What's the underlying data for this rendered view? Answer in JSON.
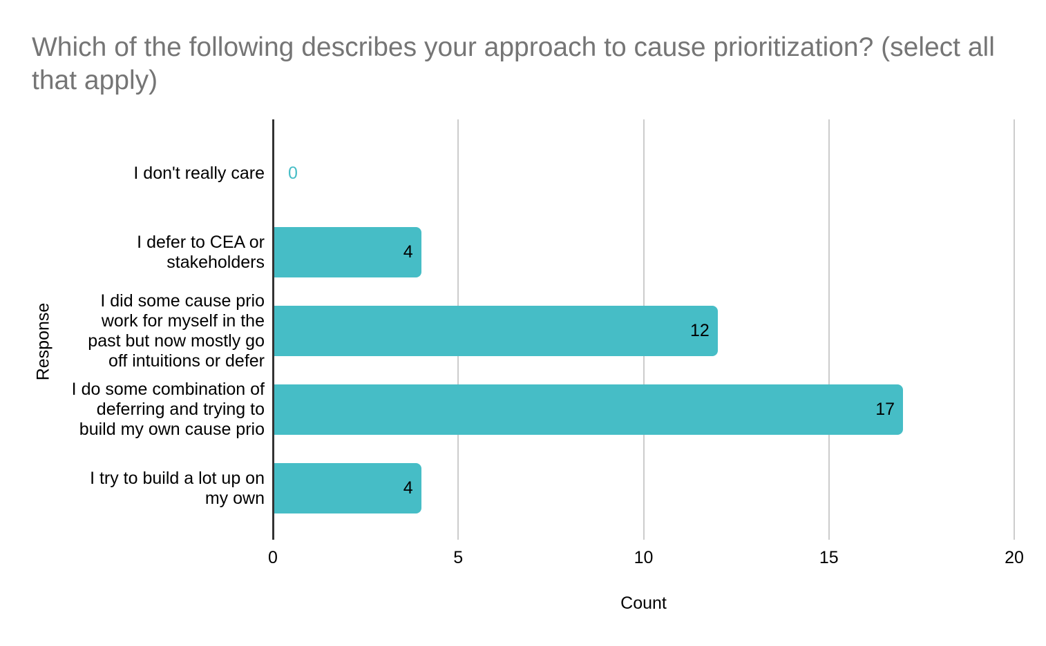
{
  "chart_data": {
    "type": "bar",
    "orientation": "horizontal",
    "title": "Which of the following describes your approach to cause prioritization? (select all that apply)",
    "xlabel": "Count",
    "ylabel": "Response",
    "categories": [
      "I don't really care",
      "I defer to CEA or stakeholders",
      "I did some cause prio work for myself in the past but now mostly go off intuitions or defer",
      "I do some combination of deferring and trying to build my own cause prio",
      "I try to build a lot up on my own"
    ],
    "values": [
      0,
      4,
      12,
      17,
      4
    ],
    "value_labels": [
      "0",
      "4",
      "12",
      "17",
      "4"
    ],
    "xlim": [
      0,
      20
    ],
    "xticks": [
      0,
      5,
      10,
      15,
      20
    ],
    "grid": "vertical",
    "legend": "none"
  },
  "style": {
    "bar_color": "#46bdc6",
    "zero_label_color": "#46bdc6",
    "title_color": "#757575",
    "axis_line_color": "#333333",
    "gridline_color": "#cccccc",
    "text_color": "#000000",
    "background": "#ffffff"
  }
}
